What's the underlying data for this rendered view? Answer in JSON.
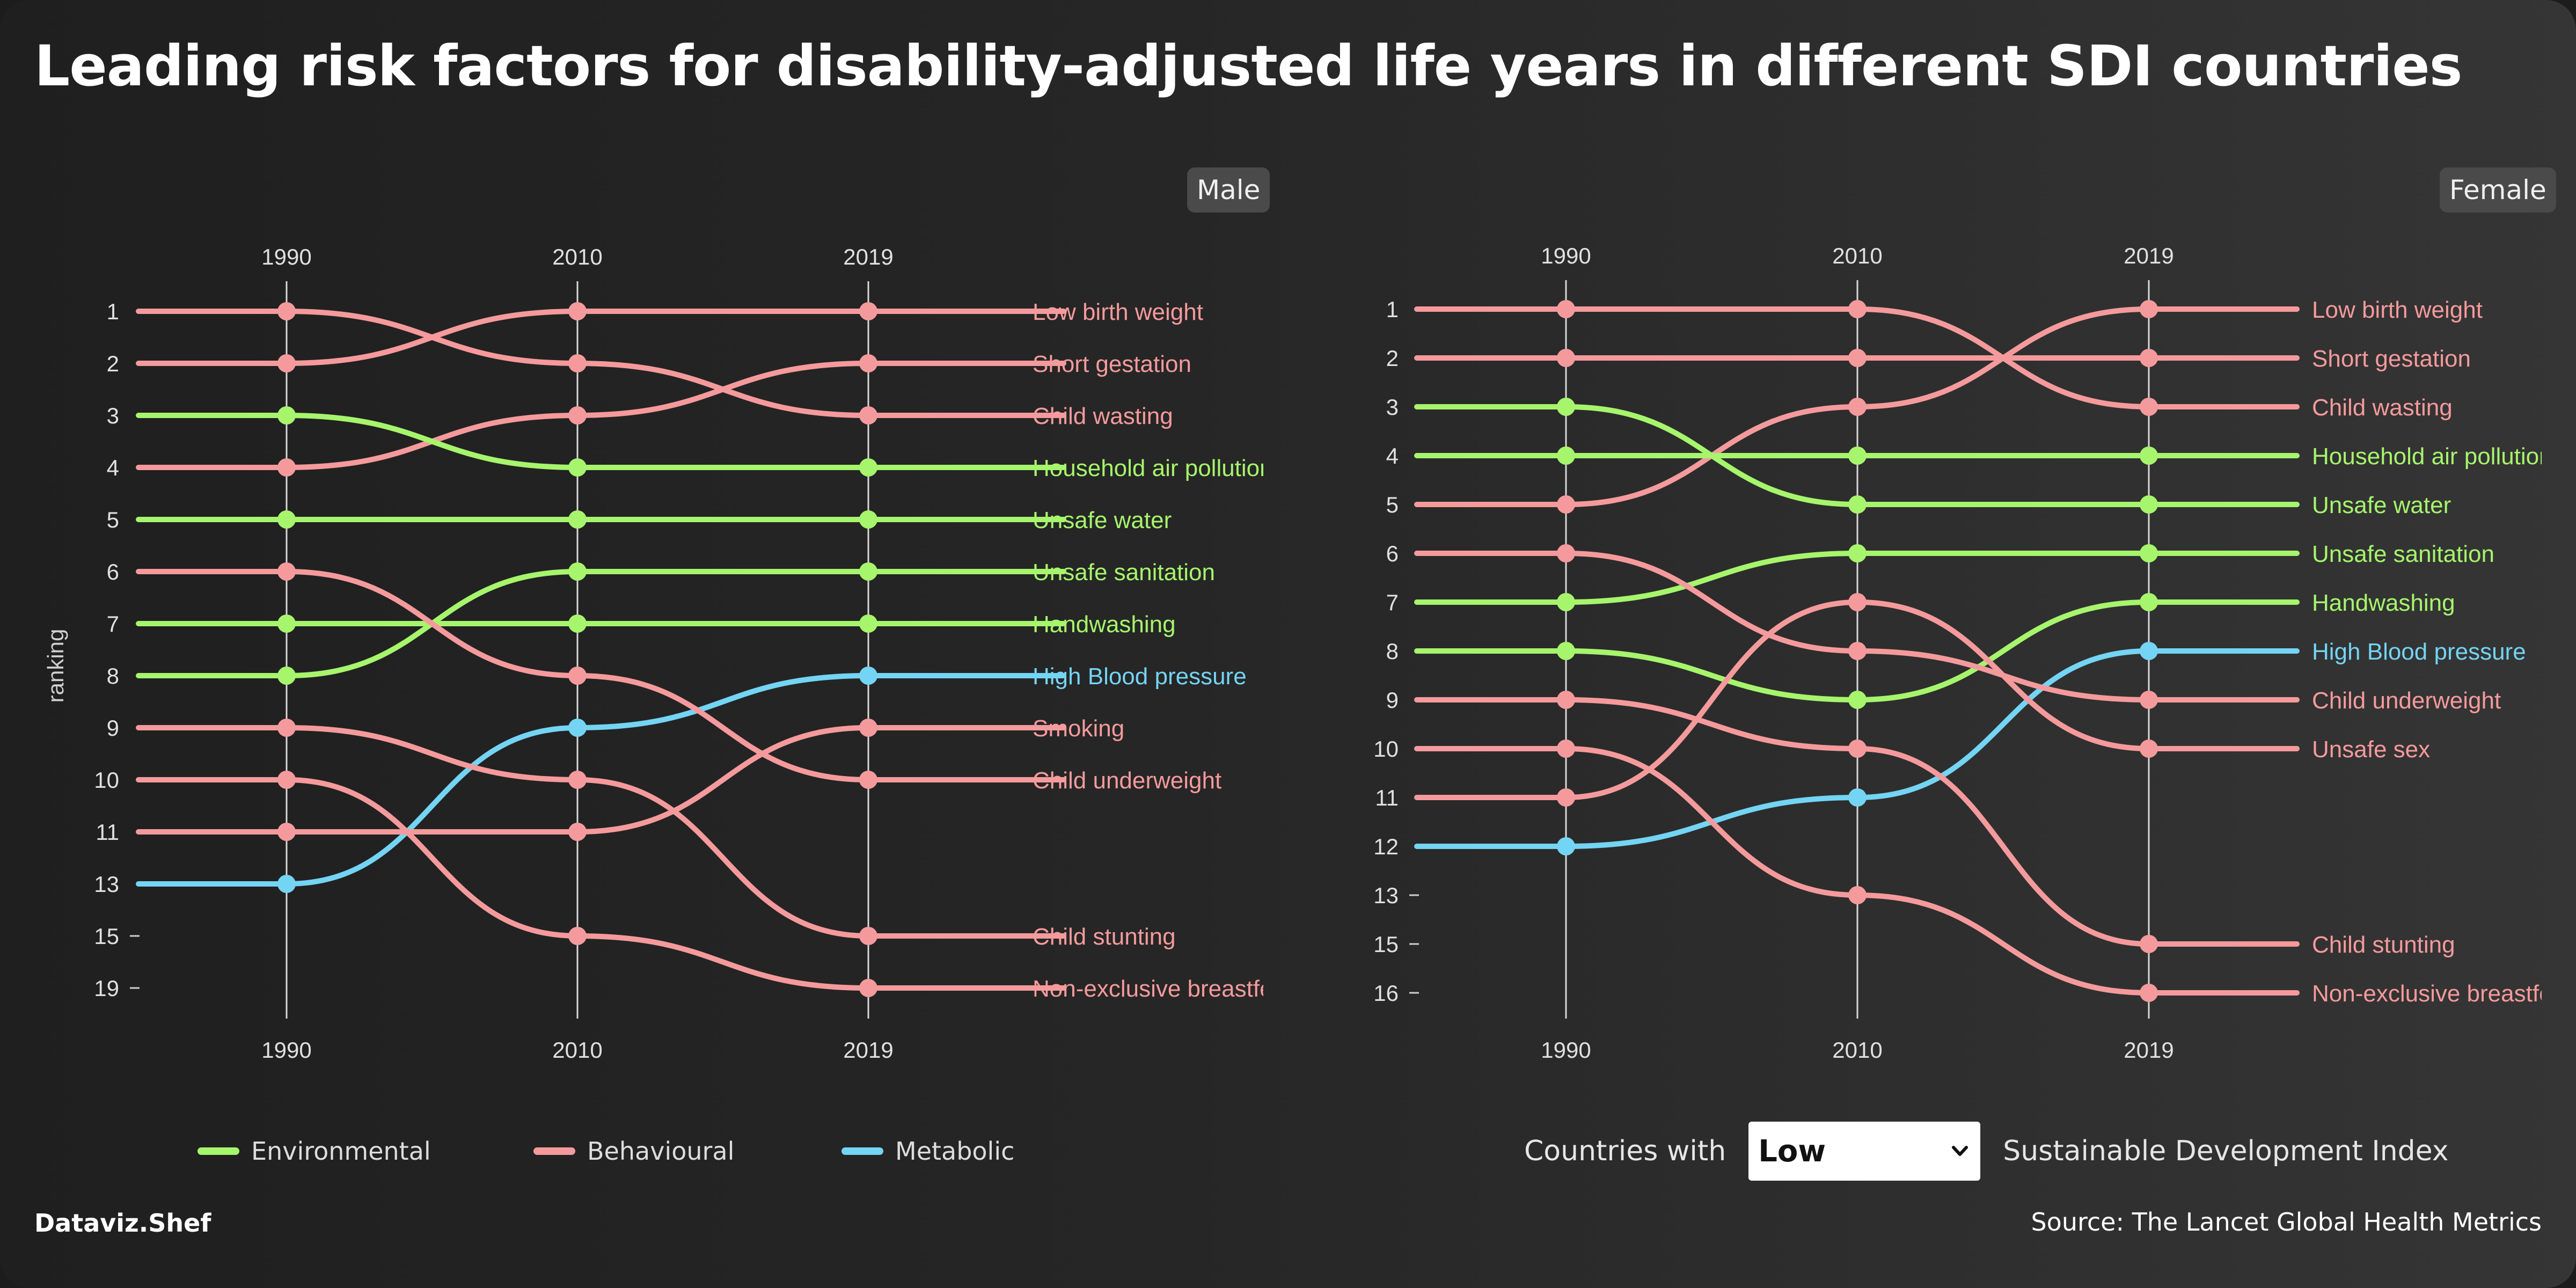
{
  "title": "Leading risk factors for disability-adjusted life years in different SDI countries",
  "colors": {
    "Environmental": "#a6f56c",
    "Behavioural": "#f59a9c",
    "Metabolic": "#74d4f4"
  },
  "chart_data": [
    {
      "type": "line",
      "panel_label": "Male",
      "ylabel": "ranking",
      "x_years": [
        "1990",
        "2010",
        "2019"
      ],
      "rank_ticks": [
        "1",
        "2",
        "3",
        "4",
        "5",
        "6",
        "7",
        "8",
        "9",
        "10",
        "11",
        "13",
        "15",
        "19"
      ],
      "series": [
        {
          "name": "Low birth weight",
          "category": "Behavioural",
          "ranks": [
            2,
            1,
            1
          ]
        },
        {
          "name": "Short gestation",
          "category": "Behavioural",
          "ranks": [
            4,
            3,
            2
          ]
        },
        {
          "name": "Child wasting",
          "category": "Behavioural",
          "ranks": [
            1,
            2,
            3
          ]
        },
        {
          "name": "Household air pollution",
          "category": "Environmental",
          "ranks": [
            3,
            4,
            4
          ]
        },
        {
          "name": "Unsafe water",
          "category": "Environmental",
          "ranks": [
            5,
            5,
            5
          ]
        },
        {
          "name": "Unsafe sanitation",
          "category": "Environmental",
          "ranks": [
            8,
            6,
            6
          ]
        },
        {
          "name": "Handwashing",
          "category": "Environmental",
          "ranks": [
            7,
            7,
            7
          ]
        },
        {
          "name": "High Blood pressure",
          "category": "Metabolic",
          "ranks": [
            13,
            9,
            8
          ]
        },
        {
          "name": "Smoking",
          "category": "Behavioural",
          "ranks": [
            11,
            11,
            9
          ]
        },
        {
          "name": "Child underweight",
          "category": "Behavioural",
          "ranks": [
            6,
            8,
            10
          ]
        },
        {
          "name": "Child stunting",
          "category": "Behavioural",
          "ranks": [
            9,
            10,
            15
          ]
        },
        {
          "name": "Non-exclusive breastfeeding",
          "category": "Behavioural",
          "ranks": [
            10,
            15,
            19
          ]
        }
      ]
    },
    {
      "type": "line",
      "panel_label": "Female",
      "ylabel": "",
      "x_years": [
        "1990",
        "2010",
        "2019"
      ],
      "rank_ticks": [
        "1",
        "2",
        "3",
        "4",
        "5",
        "6",
        "7",
        "8",
        "9",
        "10",
        "11",
        "12",
        "13",
        "15",
        "16"
      ],
      "series": [
        {
          "name": "Low birth weight",
          "category": "Behavioural",
          "ranks": [
            5,
            3,
            1
          ]
        },
        {
          "name": "Short gestation",
          "category": "Behavioural",
          "ranks": [
            2,
            2,
            2
          ]
        },
        {
          "name": "Child wasting",
          "category": "Behavioural",
          "ranks": [
            1,
            1,
            3
          ]
        },
        {
          "name": "Household air pollution",
          "category": "Environmental",
          "ranks": [
            4,
            4,
            4
          ]
        },
        {
          "name": "Unsafe water",
          "category": "Environmental",
          "ranks": [
            3,
            5,
            5
          ]
        },
        {
          "name": "Unsafe sanitation",
          "category": "Environmental",
          "ranks": [
            7,
            6,
            6
          ]
        },
        {
          "name": "Handwashing",
          "category": "Environmental",
          "ranks": [
            8,
            9,
            7
          ]
        },
        {
          "name": "High Blood pressure",
          "category": "Metabolic",
          "ranks": [
            12,
            11,
            8
          ]
        },
        {
          "name": "Child underweight",
          "category": "Behavioural",
          "ranks": [
            6,
            8,
            9
          ]
        },
        {
          "name": "Unsafe sex",
          "category": "Behavioural",
          "ranks": [
            11,
            7,
            10
          ]
        },
        {
          "name": "Child stunting",
          "category": "Behavioural",
          "ranks": [
            9,
            10,
            15
          ]
        },
        {
          "name": "Non-exclusive breastfeeding",
          "category": "Behavioural",
          "ranks": [
            10,
            13,
            16
          ]
        }
      ]
    }
  ],
  "legend": [
    {
      "label": "Environmental",
      "category": "Environmental"
    },
    {
      "label": "Behavioural",
      "category": "Behavioural"
    },
    {
      "label": "Metabolic",
      "category": "Metabolic"
    }
  ],
  "selector": {
    "prefix": "Countries with",
    "value": "Low",
    "suffix": "Sustainable Development Index"
  },
  "brand": "Dataviz.Shef",
  "source": "Source: The Lancet Global Health Metrics"
}
